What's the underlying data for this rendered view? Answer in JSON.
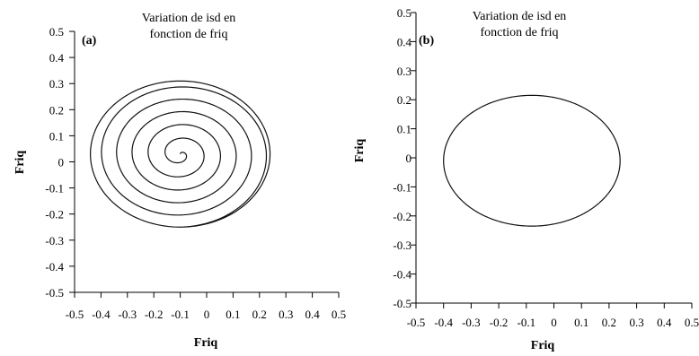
{
  "chart_data": [
    {
      "type": "line",
      "panel_label": "(a)",
      "title_lines": [
        "Variation de isd en",
        "fonction de friq"
      ],
      "xlabel": "Friq",
      "ylabel": "Friq",
      "xlim": [
        -0.5,
        0.5
      ],
      "ylim": [
        -0.5,
        0.5
      ],
      "x_tick_labels": [
        "-0.5",
        "-0.4",
        "-0.3",
        "-0.2",
        "-0.1",
        "0",
        "0.1",
        "0.2",
        "0.3",
        "0.4",
        "0.5"
      ],
      "y_tick_labels": [
        "0.5",
        "0.4",
        "0.3",
        "0.2",
        "0.1",
        "0",
        "-0.1",
        "-0.2",
        "-0.3",
        "-0.4",
        "-0.5"
      ],
      "grid": false,
      "series": [
        {
          "shape": "spiral",
          "center": [
            -0.1,
            0.03
          ],
          "start_point": [
            -0.1,
            0.05
          ],
          "final_radius_x": 0.34,
          "final_radius_y": 0.28,
          "turns": 5.5,
          "color": "#111111"
        }
      ]
    },
    {
      "type": "line",
      "panel_label": "(b)",
      "title_lines": [
        "Variation de isd en",
        "fonction de friq"
      ],
      "xlabel": "Friq",
      "ylabel": "Friq",
      "xlim": [
        -0.5,
        0.5
      ],
      "ylim": [
        -0.5,
        0.5
      ],
      "x_tick_labels": [
        "-0.5",
        "-0.4",
        "-0.3",
        "-0.2",
        "-0.1",
        "0",
        "0.1",
        "0.2",
        "0.3",
        "0.4",
        "0.5"
      ],
      "y_tick_labels": [
        "0.5",
        "0.4",
        "0.3",
        "0.2",
        "0.1",
        "0",
        "-0.1",
        "-0.2",
        "-0.3",
        "-0.4",
        "-0.5"
      ],
      "grid": false,
      "series": [
        {
          "shape": "ellipse",
          "center": [
            -0.08,
            -0.01
          ],
          "radius_x": 0.32,
          "radius_y": 0.225,
          "color": "#111111"
        }
      ]
    }
  ]
}
